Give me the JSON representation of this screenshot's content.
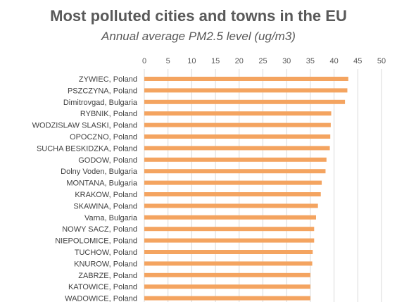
{
  "chart_data": {
    "type": "bar",
    "orientation": "horizontal",
    "title": "Most polluted cities and towns in the EU",
    "subtitle": "Annual average PM2.5 level (ug/m3)",
    "xlim": [
      0,
      50
    ],
    "xticks": [
      0,
      5,
      10,
      15,
      20,
      25,
      30,
      35,
      40,
      45,
      50
    ],
    "grid": true,
    "bar_color": "#F4A460",
    "categories": [
      "ZYWIEC, Poland",
      "PSZCZYNA, Poland",
      "Dimitrovgad, Bulgaria",
      "RYBNIK, Poland",
      "WODZISLAW SLASKI, Poland",
      "OPOCZNO, Poland",
      "SUCHA BESKIDZKA, Poland",
      "GODOW, Poland",
      "Dolny Voden, Bulgaria",
      "MONTANA, Bulgaria",
      "KRAKOW, Poland",
      "SKAWINA, Poland",
      "Varna, Bulgaria",
      "NOWY SACZ, Poland",
      "NIEPOLOMICE, Poland",
      "TUCHOW, Poland",
      "KNUROW, Poland",
      "ZABRZE, Poland",
      "KATOWICE, Poland",
      "WADOWICE, Poland"
    ],
    "values": [
      43.0,
      42.8,
      42.3,
      39.4,
      39.3,
      39.2,
      39.1,
      38.4,
      38.2,
      37.4,
      37.2,
      36.6,
      36.2,
      35.8,
      35.8,
      35.5,
      35.4,
      35.0,
      35.0,
      35.0
    ]
  }
}
